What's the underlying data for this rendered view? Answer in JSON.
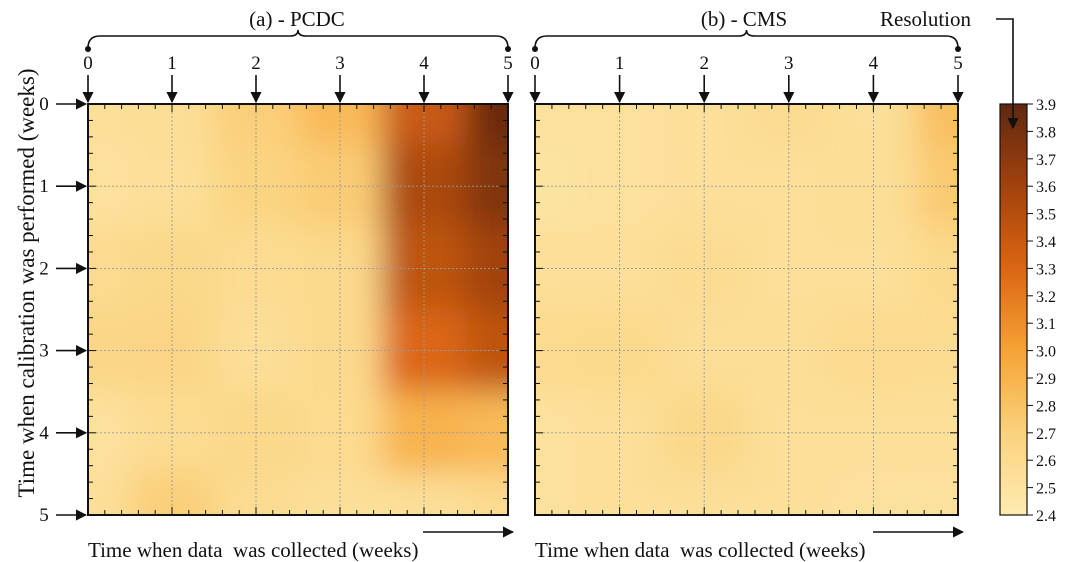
{
  "figure": {
    "type": "heatmap",
    "y_label": "Time when calibration was performed (weeks)",
    "x_label": "Time when data  was collected (weeks)",
    "colorbar_label": "Resolution",
    "colorbar_ticks": [
      "2.4",
      "2.5",
      "2.6",
      "2.7",
      "2.8",
      "2.9",
      "3.0",
      "3.1",
      "3.2",
      "3.3",
      "3.4",
      "3.5",
      "3.6",
      "3.7",
      "3.8",
      "3.9"
    ],
    "colorscale": [
      "#fdebb1",
      "#fbd27e",
      "#f6a335",
      "#db6614",
      "#a2420d",
      "#5f2810"
    ],
    "grid_lines": true
  },
  "chart_data": [
    {
      "type": "heatmap",
      "title": "(a) - PCDC",
      "x_ticks": [
        "0",
        "1",
        "2",
        "3",
        "4",
        "5"
      ],
      "y_ticks": [
        "0",
        "1",
        "2",
        "3",
        "4",
        "5"
      ],
      "xlabel": "Time when data  was collected (weeks)",
      "ylabel": "Time when calibration was performed (weeks)",
      "zlim": [
        2.4,
        3.9
      ],
      "x": [
        0,
        1,
        2,
        3,
        4,
        5
      ],
      "y": [
        0,
        1,
        2,
        3,
        4,
        5
      ],
      "z": [
        [
          2.55,
          2.56,
          2.72,
          2.85,
          3.4,
          3.85
        ],
        [
          2.52,
          2.55,
          2.68,
          2.74,
          3.55,
          3.75
        ],
        [
          2.6,
          2.63,
          2.58,
          2.62,
          3.45,
          3.6
        ],
        [
          2.65,
          2.66,
          2.56,
          2.62,
          3.3,
          3.45
        ],
        [
          2.52,
          2.58,
          2.63,
          2.6,
          2.9,
          2.85
        ],
        [
          2.55,
          2.72,
          2.58,
          2.55,
          2.55,
          2.6
        ]
      ]
    },
    {
      "type": "heatmap",
      "title": "(b) - CMS",
      "x_ticks": [
        "0",
        "1",
        "2",
        "3",
        "4",
        "5"
      ],
      "y_ticks": [
        "0",
        "1",
        "2",
        "3",
        "4",
        "5"
      ],
      "xlabel": "Time when data  was collected (weeks)",
      "zlim": [
        2.4,
        3.9
      ],
      "x": [
        0,
        1,
        2,
        3,
        4,
        5
      ],
      "y": [
        0,
        1,
        2,
        3,
        4,
        5
      ],
      "z": [
        [
          2.52,
          2.52,
          2.55,
          2.58,
          2.55,
          2.82
        ],
        [
          2.5,
          2.52,
          2.54,
          2.55,
          2.56,
          2.75
        ],
        [
          2.55,
          2.55,
          2.58,
          2.55,
          2.55,
          2.62
        ],
        [
          2.6,
          2.62,
          2.56,
          2.56,
          2.6,
          2.58
        ],
        [
          2.52,
          2.55,
          2.63,
          2.55,
          2.55,
          2.55
        ],
        [
          2.52,
          2.55,
          2.55,
          2.55,
          2.52,
          2.52
        ]
      ]
    }
  ]
}
